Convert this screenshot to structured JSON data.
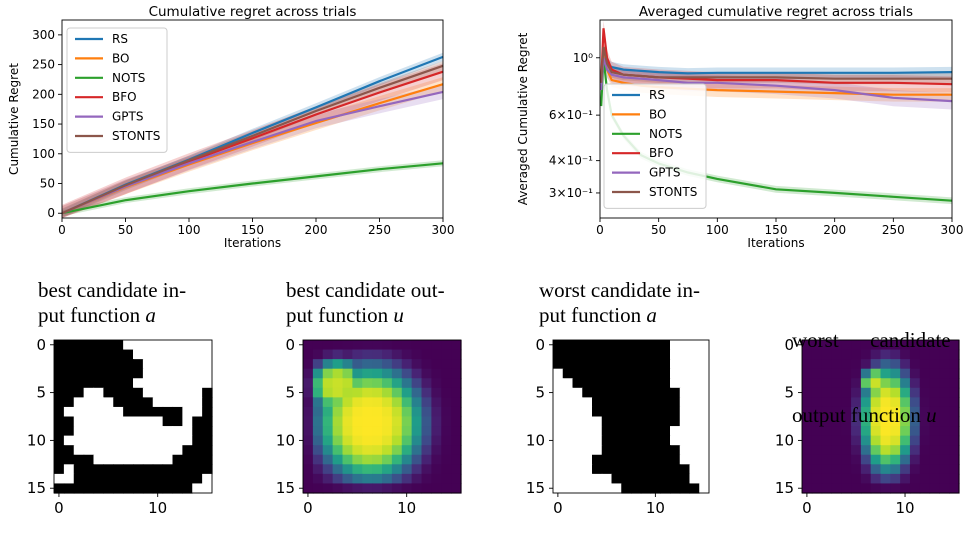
{
  "chart_data": [
    {
      "type": "line",
      "title": "Cumulative regret across trials",
      "xlabel": "Iterations",
      "ylabel": "Cumulative Regret",
      "xlim": [
        0,
        300
      ],
      "ylim": [
        -8,
        325
      ],
      "xticks": [
        "0",
        "50",
        "100",
        "150",
        "200",
        "250",
        "300"
      ],
      "yticks": [
        "0",
        "50",
        "100",
        "150",
        "200",
        "250",
        "300"
      ],
      "grid": false,
      "legend_position": "top-left",
      "x": [
        0,
        50,
        100,
        150,
        200,
        250,
        300
      ],
      "series": [
        {
          "name": "RS",
          "color": "#1f77b4",
          "values": [
            0,
            48,
            90,
            135,
            178,
            222,
            263
          ],
          "band": 7
        },
        {
          "name": "BO",
          "color": "#ff7f0e",
          "values": [
            0,
            44,
            82,
            118,
            152,
            185,
            217
          ],
          "band": 12
        },
        {
          "name": "NOTS",
          "color": "#2ca02c",
          "values": [
            0,
            22,
            37,
            50,
            62,
            74,
            84
          ],
          "band": 5
        },
        {
          "name": "BFO",
          "color": "#d62728",
          "values": [
            0,
            46,
            87,
            126,
            166,
            203,
            238
          ],
          "band": 14
        },
        {
          "name": "GPTS",
          "color": "#9467bd",
          "values": [
            0,
            45,
            84,
            120,
            155,
            180,
            204
          ],
          "band": 12
        },
        {
          "name": "STONTS",
          "color": "#8c564b",
          "values": [
            0,
            47,
            89,
            130,
            172,
            211,
            248
          ],
          "band": 8
        }
      ]
    },
    {
      "type": "line",
      "title": "Averaged cumulative regret across trials",
      "xlabel": "Iterations",
      "ylabel": "Averaged Cumulative Regret",
      "xlim": [
        0,
        300
      ],
      "ylim": [
        0.24,
        1.4
      ],
      "yscale": "log",
      "xticks": [
        "0",
        "50",
        "100",
        "150",
        "200",
        "250",
        "300"
      ],
      "yticks": [
        {
          "value": 1.0,
          "label": "10⁰"
        },
        {
          "value": 0.6,
          "label": "6×10⁻¹"
        },
        {
          "value": 0.4,
          "label": "4×10⁻¹"
        },
        {
          "value": 0.3,
          "label": "3×10⁻¹"
        }
      ],
      "grid": false,
      "legend_position": "center-left",
      "x": [
        1,
        3,
        6,
        10,
        20,
        35,
        50,
        75,
        100,
        150,
        200,
        250,
        300
      ],
      "series": [
        {
          "name": "RS",
          "color": "#1f77b4",
          "values": [
            0.8,
            1.0,
            0.95,
            0.92,
            0.9,
            0.89,
            0.88,
            0.87,
            0.875,
            0.875,
            0.875,
            0.875,
            0.88
          ],
          "band": 0.04
        },
        {
          "name": "BO",
          "color": "#ff7f0e",
          "values": [
            0.8,
            1.1,
            0.9,
            0.82,
            0.8,
            0.78,
            0.77,
            0.76,
            0.75,
            0.74,
            0.73,
            0.72,
            0.72
          ],
          "band": 0.05
        },
        {
          "name": "NOTS",
          "color": "#2ca02c",
          "values": [
            0.65,
            1.0,
            0.75,
            0.6,
            0.5,
            0.42,
            0.39,
            0.36,
            0.34,
            0.31,
            0.3,
            0.29,
            0.28
          ],
          "band": 0.025
        },
        {
          "name": "BFO",
          "color": "#d62728",
          "values": [
            0.8,
            1.3,
            1.0,
            0.9,
            0.86,
            0.85,
            0.84,
            0.83,
            0.82,
            0.82,
            0.8,
            0.8,
            0.79
          ],
          "band": 0.06
        },
        {
          "name": "GPTS",
          "color": "#9467bd",
          "values": [
            0.75,
            1.0,
            0.9,
            0.86,
            0.84,
            0.83,
            0.82,
            0.8,
            0.8,
            0.78,
            0.75,
            0.7,
            0.68
          ],
          "band": 0.06
        },
        {
          "name": "STONTS",
          "color": "#8c564b",
          "values": [
            0.8,
            1.1,
            0.95,
            0.88,
            0.86,
            0.85,
            0.84,
            0.84,
            0.84,
            0.84,
            0.83,
            0.83,
            0.83
          ],
          "band": 0.04
        }
      ]
    },
    {
      "type": "heatmap",
      "colormap": "gray",
      "caption_lines": [
        "best candidate in-",
        "put function "
      ],
      "caption_var": "a",
      "xticks": [
        "0",
        "10"
      ],
      "yticks": [
        "0",
        "5",
        "10",
        "15"
      ],
      "grid": [
        "0000000111111111",
        "0000000011111111",
        "0000000001111111",
        "0000000001111111",
        "0000000011111111",
        "0001100001111110",
        "0011110000111110",
        "0111111000000110",
        "0011111111100100",
        "0011111111111100",
        "0111111111111100",
        "0011111111111000",
        "0000111111110000",
        "0100000000000000",
        "1100000000000001",
        "0000000000000011"
      ]
    },
    {
      "type": "heatmap",
      "colormap": "viridis",
      "caption_lines": [
        "best candidate out-",
        "put function "
      ],
      "caption_var": "u",
      "xticks": [
        "0",
        "10"
      ],
      "yticks": [
        "0",
        "5",
        "10",
        "15"
      ],
      "blob": {
        "cx": 6.3,
        "cy": 8.2,
        "rx": 4.6,
        "ry": 5.2,
        "lobe_cx": 3.0,
        "lobe_cy": 4.3,
        "lobe_r": 2.4
      }
    },
    {
      "type": "heatmap",
      "colormap": "gray",
      "caption_lines": [
        "worst candidate in-",
        "put function "
      ],
      "caption_var": "a",
      "xticks": [
        "0",
        "10"
      ],
      "yticks": [
        "0",
        "5",
        "10",
        "15"
      ],
      "grid": [
        "0000000000001111",
        "0000000000001111",
        "0000000000001111",
        "1000000000001111",
        "1100000000001111",
        "1110000000000111",
        "1111000000000111",
        "1111000000000111",
        "1111100000000111",
        "1111100000001111",
        "1111100000001111",
        "1111100000000111",
        "1111000000000111",
        "1111000000000011",
        "1111110000000011",
        "1111111000000001"
      ]
    },
    {
      "type": "heatmap",
      "colormap": "viridis",
      "caption_lines": [
        "worst      candidate",
        "output function "
      ],
      "caption_var": "u",
      "xticks": [
        "0",
        "10"
      ],
      "yticks": [
        "0",
        "5",
        "10",
        "15"
      ],
      "blob": {
        "cx": 8.2,
        "cy": 7.8,
        "rx": 2.3,
        "ry": 4.8,
        "lobe_cx": 7.0,
        "lobe_cy": 4.0,
        "lobe_r": 1.3
      }
    }
  ]
}
